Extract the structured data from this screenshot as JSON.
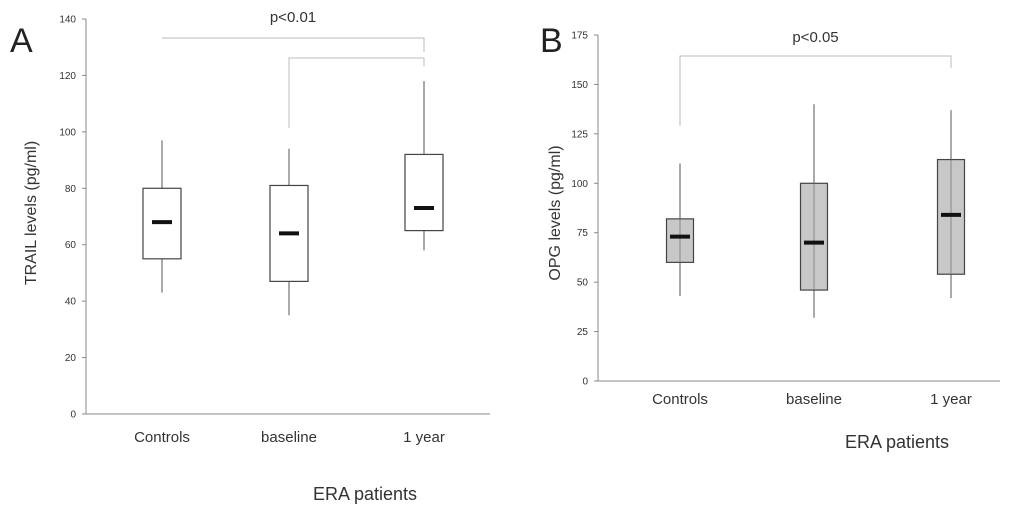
{
  "chart_data": [
    {
      "type": "boxplot",
      "panel_label": "A",
      "ylabel": "TRAIL levels (pg/ml)",
      "xlabel": "ERA patients",
      "ylim": [
        0,
        140
      ],
      "yticks": [
        0,
        20,
        40,
        60,
        80,
        100,
        120,
        140
      ],
      "categories": [
        "Controls",
        "baseline",
        "1 year"
      ],
      "box_fill": "#ffffff",
      "groups": [
        {
          "category": "Controls",
          "whisker_low": 43,
          "q1": 55,
          "median": 68,
          "q3": 80,
          "whisker_high": 97
        },
        {
          "category": "baseline",
          "whisker_low": 35,
          "q1": 47,
          "median": 64,
          "q3": 81,
          "whisker_high": 94
        },
        {
          "category": "1 year",
          "whisker_low": 58,
          "q1": 65,
          "median": 73,
          "q3": 92,
          "whisker_high": 118
        }
      ],
      "significance": [
        {
          "from": "Controls",
          "to": "1 year",
          "label": "p<0.01"
        },
        {
          "from": "baseline",
          "to": "1 year",
          "label": ""
        }
      ]
    },
    {
      "type": "boxplot",
      "panel_label": "B",
      "ylabel": "OPG levels (pg/ml)",
      "xlabel": "ERA patients",
      "ylim": [
        0,
        175
      ],
      "yticks": [
        0,
        25,
        50,
        75,
        100,
        125,
        150,
        175
      ],
      "categories": [
        "Controls",
        "baseline",
        "1 year"
      ],
      "box_fill": "#c8c8c8",
      "groups": [
        {
          "category": "Controls",
          "whisker_low": 43,
          "q1": 60,
          "median": 73,
          "q3": 82,
          "whisker_high": 110
        },
        {
          "category": "baseline",
          "whisker_low": 32,
          "q1": 46,
          "median": 70,
          "q3": 100,
          "whisker_high": 140
        },
        {
          "category": "1 year",
          "whisker_low": 42,
          "q1": 54,
          "median": 84,
          "q3": 112,
          "whisker_high": 137
        }
      ],
      "significance": [
        {
          "from": "Controls",
          "to": "1 year",
          "label": "p<0.05"
        }
      ]
    }
  ]
}
